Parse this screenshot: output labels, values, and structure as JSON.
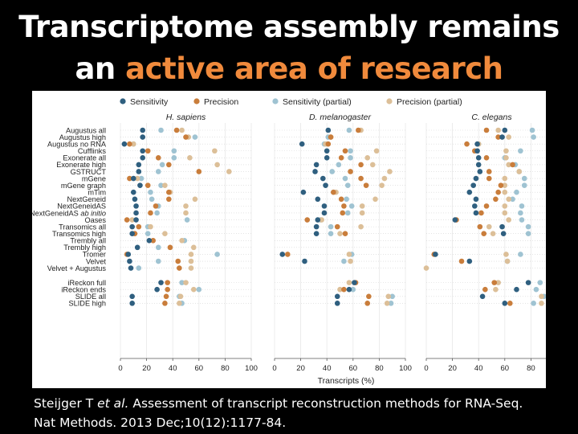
{
  "slide": {
    "title_line1": "Transcriptome assembly remains",
    "title_line2_prefix": "an ",
    "title_line2_accent": "active area of research",
    "accent_color": "#f08a3c",
    "citation_line1_a": "Steijger T ",
    "citation_line1_italic": "et al.",
    "citation_line1_b": " Assessment of transcript reconstruction methods for RNA-Seq.",
    "citation_line2": "Nat Methods. 2013 Dec;10(12):1177-84."
  },
  "chart_data": {
    "type": "scatter",
    "xlabel": "Transcripts (%)",
    "xlim": [
      0,
      100
    ],
    "xticks": [
      0,
      20,
      40,
      60,
      80,
      100
    ],
    "legend": [
      {
        "key": "sensitivity",
        "label": "Sensitivity",
        "color": "#2f5f7f"
      },
      {
        "key": "precision",
        "label": "Precision",
        "color": "#c97d3b"
      },
      {
        "key": "sensitivity_partial",
        "label": "Sensitivity (partial)",
        "color": "#9fc3d2"
      },
      {
        "key": "precision_partial",
        "label": "Precision (partial)",
        "color": "#dcbf98"
      }
    ],
    "methods": [
      {
        "name": "Augustus all"
      },
      {
        "name": "Augustus high"
      },
      {
        "name": "Augustus no RNA"
      },
      {
        "name": "Cufflinks"
      },
      {
        "name": "Exonerate all"
      },
      {
        "name": "Exonerate high"
      },
      {
        "name": "GSTRUCT"
      },
      {
        "name": "mGene"
      },
      {
        "name": "mGene graph"
      },
      {
        "name": "mTim"
      },
      {
        "name": "NextGeneid"
      },
      {
        "name": "NextGeneidAS"
      },
      {
        "name": "NextGeneidAS ab initio",
        "prefix": "NextGeneidAS ",
        "italic": "ab initio"
      },
      {
        "name": "Oases"
      },
      {
        "name": "Transomics all"
      },
      {
        "name": "Transomics high"
      },
      {
        "name": "Trembly all"
      },
      {
        "name": "Trembly high"
      },
      {
        "name": "Tromer"
      },
      {
        "name": "Velvet"
      },
      {
        "name": "Velvet + Augustus"
      },
      {
        "name": "iReckon full"
      },
      {
        "name": "iReckon ends"
      },
      {
        "name": "SLIDE all"
      },
      {
        "name": "SLIDE high"
      }
    ],
    "panels": [
      {
        "title": "H. sapiens",
        "sensitivity": [
          17,
          17,
          3,
          17,
          17,
          14,
          14,
          10,
          15,
          10,
          11,
          12,
          12,
          12,
          9,
          9,
          22,
          13,
          6,
          7,
          8,
          31,
          28,
          9,
          9
        ],
        "precision": [
          43,
          50,
          7,
          21,
          29,
          37,
          60,
          7,
          21,
          37,
          37,
          27,
          23,
          5,
          14,
          11,
          25,
          38,
          5,
          44,
          45,
          36,
          36,
          35,
          34
        ],
        "sensitivity_partial": [
          31,
          57,
          10,
          41,
          41,
          32,
          29,
          16,
          31,
          23,
          24,
          29,
          28,
          51,
          21,
          21,
          49,
          29,
          74,
          29,
          14,
          47,
          60,
          45,
          47
        ],
        "precision_partial": [
          47,
          52,
          10,
          72,
          53,
          74,
          83,
          13,
          34,
          38,
          57,
          50,
          50,
          9,
          23,
          34,
          47,
          56,
          54,
          54,
          54,
          50,
          56,
          46,
          45
        ]
      },
      {
        "title": "D. melanogaster",
        "sensitivity": [
          41,
          null,
          21,
          40,
          40,
          32,
          31,
          37,
          39,
          22,
          33,
          38,
          38,
          33,
          32,
          32,
          null,
          null,
          6,
          23,
          null,
          61,
          57,
          48,
          48
        ],
        "precision": [
          64,
          43,
          41,
          54,
          51,
          66,
          58,
          66,
          70,
          45,
          51,
          53,
          52,
          25,
          48,
          54,
          null,
          null,
          10,
          null,
          null,
          62,
          53,
          72,
          71
        ],
        "sensitivity_partial": [
          57,
          41,
          38,
          58,
          58,
          49,
          44,
          54,
          56,
          45,
          55,
          59,
          56,
          35,
          43,
          43,
          null,
          null,
          59,
          53,
          null,
          null,
          60,
          90,
          89
        ],
        "precision_partial": [
          66,
          43,
          39,
          78,
          71,
          75,
          88,
          84,
          82,
          47,
          77,
          67,
          67,
          36,
          66,
          50,
          null,
          null,
          57,
          58,
          null,
          57,
          50,
          87,
          86
        ]
      },
      {
        "title": "C. elegans",
        "sensitivity": [
          60,
          58,
          39,
          39,
          40,
          40,
          41,
          38,
          36,
          33,
          38,
          37,
          38,
          22,
          58,
          59,
          null,
          null,
          7,
          33,
          null,
          78,
          69,
          43,
          60
        ],
        "precision": [
          46,
          55,
          31,
          37,
          46,
          66,
          48,
          48,
          57,
          55,
          53,
          46,
          42,
          23,
          41,
          44,
          null,
          null,
          6,
          27,
          null,
          52,
          45,
          null,
          64
        ],
        "sensitivity_partial": [
          81,
          82,
          40,
          72,
          60,
          68,
          71,
          75,
          75,
          69,
          66,
          73,
          72,
          73,
          78,
          78,
          null,
          null,
          72,
          62,
          null,
          87,
          84,
          90,
          82
        ],
        "precision_partial": [
          55,
          63,
          40,
          61,
          61,
          63,
          71,
          60,
          60,
          60,
          63,
          60,
          60,
          63,
          48,
          51,
          null,
          null,
          61,
          62,
          0,
          55,
          53,
          88,
          88
        ]
      }
    ]
  }
}
